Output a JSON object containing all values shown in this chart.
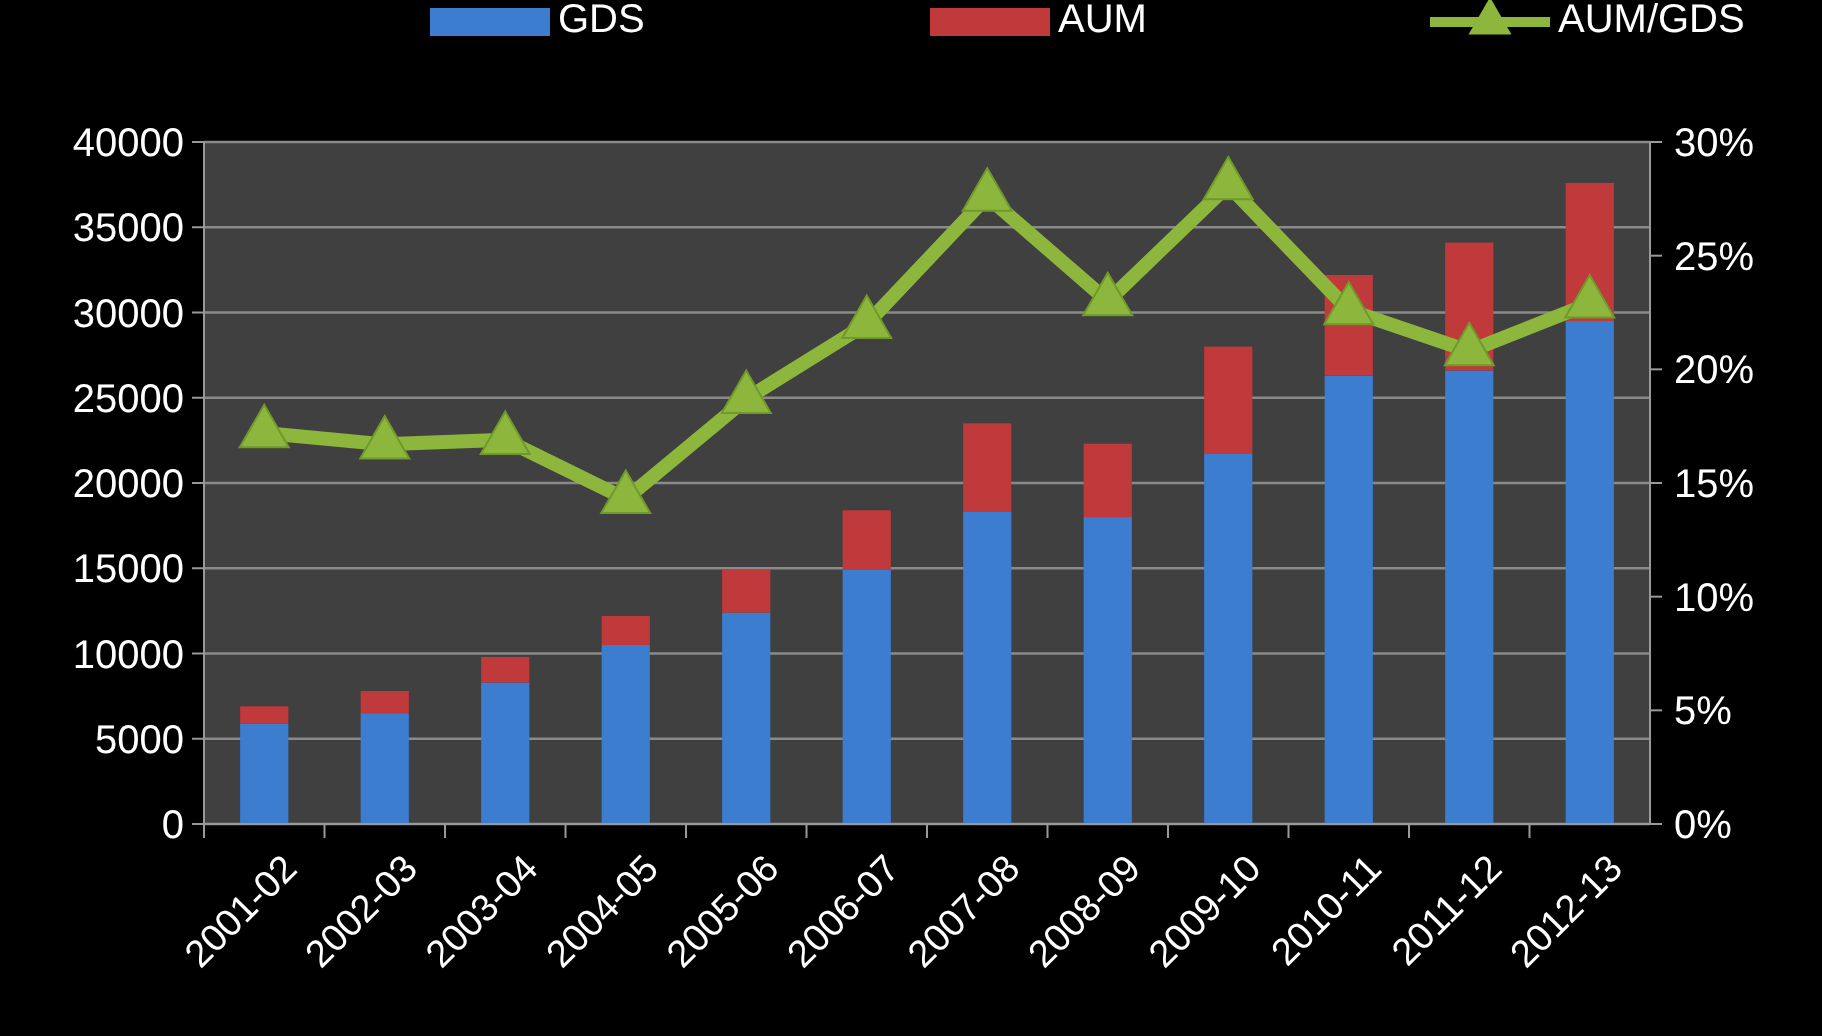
{
  "chart_data": {
    "type": "bar",
    "stacked": true,
    "categories": [
      "2001-02",
      "2002-03",
      "2003-04",
      "2004-05",
      "2005-06",
      "2006-07",
      "2007-08",
      "2008-09",
      "2009-10",
      "2010-11",
      "2011-12",
      "2012-13"
    ],
    "series": [
      {
        "name": "GDS",
        "color": "#3c7dd0",
        "values": [
          5900,
          6500,
          8300,
          10500,
          12400,
          14900,
          18300,
          18000,
          21700,
          26300,
          26600,
          29500
        ]
      },
      {
        "name": "AUM",
        "color": "#c0393b",
        "values": [
          1000,
          1300,
          1500,
          1700,
          2500,
          3500,
          5200,
          4300,
          6300,
          5900,
          7500,
          8100
        ]
      },
      {
        "name": "AUM/GDS",
        "type": "line",
        "axis": "y2",
        "color": "#8db63c",
        "marker": "triangle",
        "values": [
          17.2,
          16.7,
          16.9,
          14.3,
          18.7,
          22.0,
          27.6,
          23.0,
          28.1,
          22.6,
          20.8,
          22.9
        ]
      }
    ],
    "ylim": [
      0,
      40000
    ],
    "yticks": [
      0,
      5000,
      10000,
      15000,
      20000,
      25000,
      30000,
      35000,
      40000
    ],
    "y2lim": [
      0,
      30
    ],
    "y2ticks": [
      {
        "value": 0,
        "label": "0%"
      },
      {
        "value": 5,
        "label": "5%"
      },
      {
        "value": 10,
        "label": "10%"
      },
      {
        "value": 15,
        "label": "15%"
      },
      {
        "value": 20,
        "label": "20%"
      },
      {
        "value": 25,
        "label": "25%"
      },
      {
        "value": 30,
        "label": "30%"
      }
    ],
    "grid": "y",
    "legend": "top"
  }
}
